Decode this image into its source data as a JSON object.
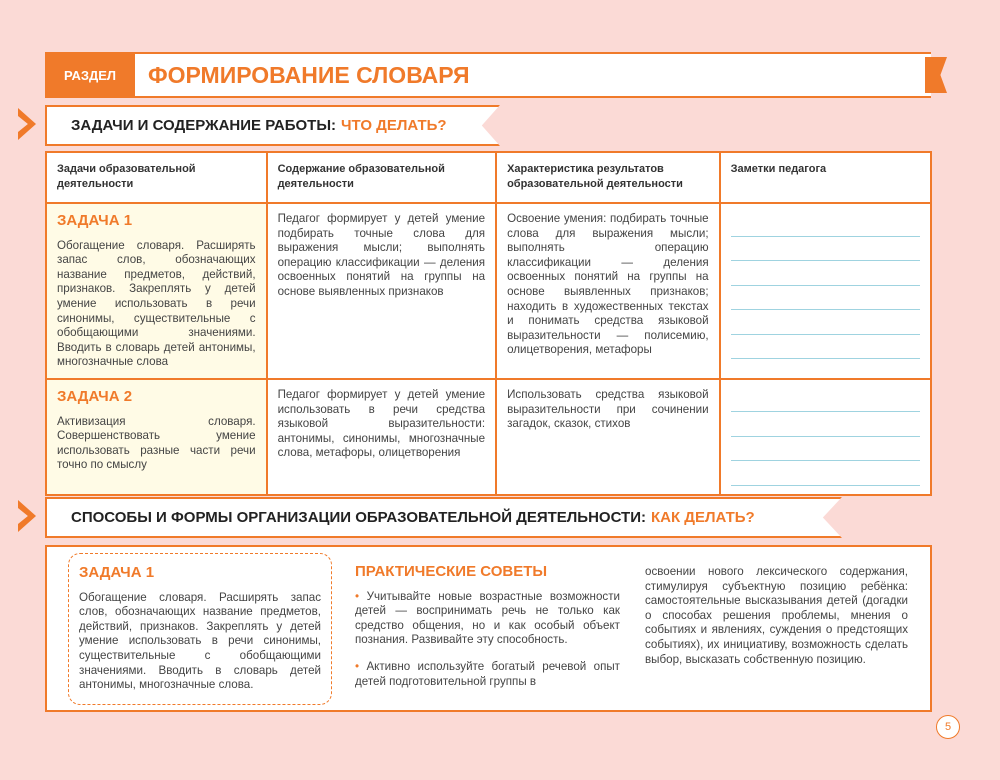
{
  "header": {
    "section_label": "РАЗДЕЛ",
    "title": "ФОРМИРОВАНИЕ СЛОВАРЯ"
  },
  "section1": {
    "title": "ЗАДАЧИ И СОДЕРЖАНИЕ РАБОТЫ:",
    "accent": "ЧТО ДЕЛАТЬ?"
  },
  "table": {
    "headers": [
      "Задачи образовательной деятельности",
      "Содержание образовательной деятельности",
      "Характеристика результатов образовательной деятельности",
      "Заметки педагога"
    ],
    "rows": [
      {
        "task": "ЗАДАЧА 1",
        "task_text": "Обогащение словаря. Расширять запас слов, обозначающих название предметов, действий, признаков. Закреплять у детей умение использовать в речи синонимы, существительные с обобщающими значениями. Вводить в словарь детей антонимы, многозначные слова",
        "content": "Педагог формирует у детей умение подбирать точные слова для выражения мысли; выполнять операцию классификации — деления освоенных понятий на группы на основе выявленных признаков",
        "result": "Освоение умения: подбирать точные слова для выражения мысли; выполнять операцию классификации — деления освоенных понятий на группы на основе выявленных признаков; находить в художественных текстах и понимать средства языковой выразительности — полисемию, олицетворения, метафоры"
      },
      {
        "task": "ЗАДАЧА 2",
        "task_text": "Активизация словаря. Совершенствовать умение использовать разные части речи точно по смыслу",
        "content": "Педагог формирует у детей умение использовать в речи средства языковой выразительности: антонимы, синонимы, многозначные слова, метафоры, олицетворения",
        "result": "Использовать средства языковой выразительности при сочинении загадок, сказок, стихов"
      }
    ]
  },
  "section2": {
    "title": "СПОСОБЫ И ФОРМЫ ОРГАНИЗАЦИИ ОБРАЗОВАТЕЛЬНОЙ ДЕЯТЕЛЬНОСТИ:",
    "accent": "КАК ДЕЛАТЬ?"
  },
  "methods": {
    "task_title": "ЗАДАЧА 1",
    "task_text": "Обогащение словаря. Расширять запас слов, обозначающих название предметов, действий, признаков. Закреплять у детей умение использовать в речи синонимы, существительные с обобщающими значениями. Вводить в словарь детей антонимы, многозначные слова.",
    "tips_title": "ПРАКТИЧЕСКИЕ СОВЕТЫ",
    "tips": [
      "Учитывайте новые возрастные возможности детей — воспринимать речь не только как средство общения, но и как особый объект познания. Развивайте эту способность.",
      "Активно используйте богатый речевой опыт детей подготовительной группы в"
    ],
    "continuation": "освоении нового лексического содержания, стимулируя субъектную позицию ребёнка: самостоятельные высказывания детей (догадки о способах решения проблемы, мнения о событиях и явлениях, суждения о предстоящих событиях), их инициативу, возможность сделать выбор, высказать собственную позицию."
  },
  "page_number": "5",
  "colors": {
    "accent": "#f07a2a",
    "background": "#fbdad6",
    "note_lines": "#9fd3e0",
    "task_cell": "#fffbe6"
  }
}
